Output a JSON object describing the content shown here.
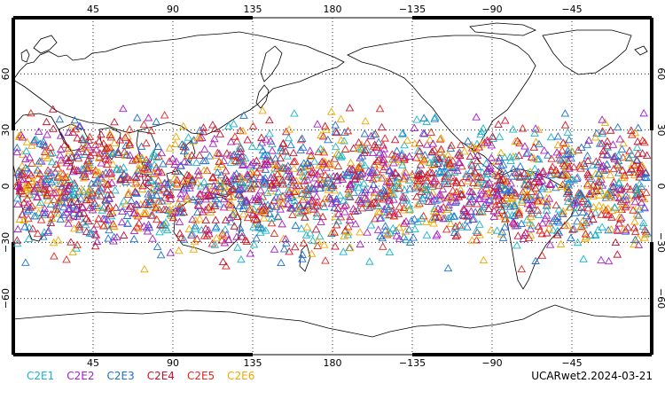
{
  "chart_data": {
    "type": "scatter",
    "title": "",
    "projection": "equirectangular",
    "lon_ticks": [
      "45",
      "90",
      "135",
      "180",
      "−135",
      "−90",
      "−45"
    ],
    "lat_ticks": [
      "60",
      "30",
      "0",
      "−30",
      "−60"
    ],
    "lon_range": [
      0,
      360
    ],
    "lat_range": [
      -90,
      90
    ],
    "grid": true,
    "marker": "triangle-open",
    "occultation_band_lat": [
      -48,
      48
    ],
    "series": [
      {
        "name": "C2E1",
        "color": "#17b5c9"
      },
      {
        "name": "C2E2",
        "color": "#a51fc8"
      },
      {
        "name": "C2E3",
        "color": "#1f6fd0"
      },
      {
        "name": "C2E4",
        "color": "#c8102e"
      },
      {
        "name": "C2E5",
        "color": "#e0261f"
      },
      {
        "name": "C2E6",
        "color": "#f0a800"
      }
    ]
  },
  "product_label": "UCARwet2.2024-03-21"
}
